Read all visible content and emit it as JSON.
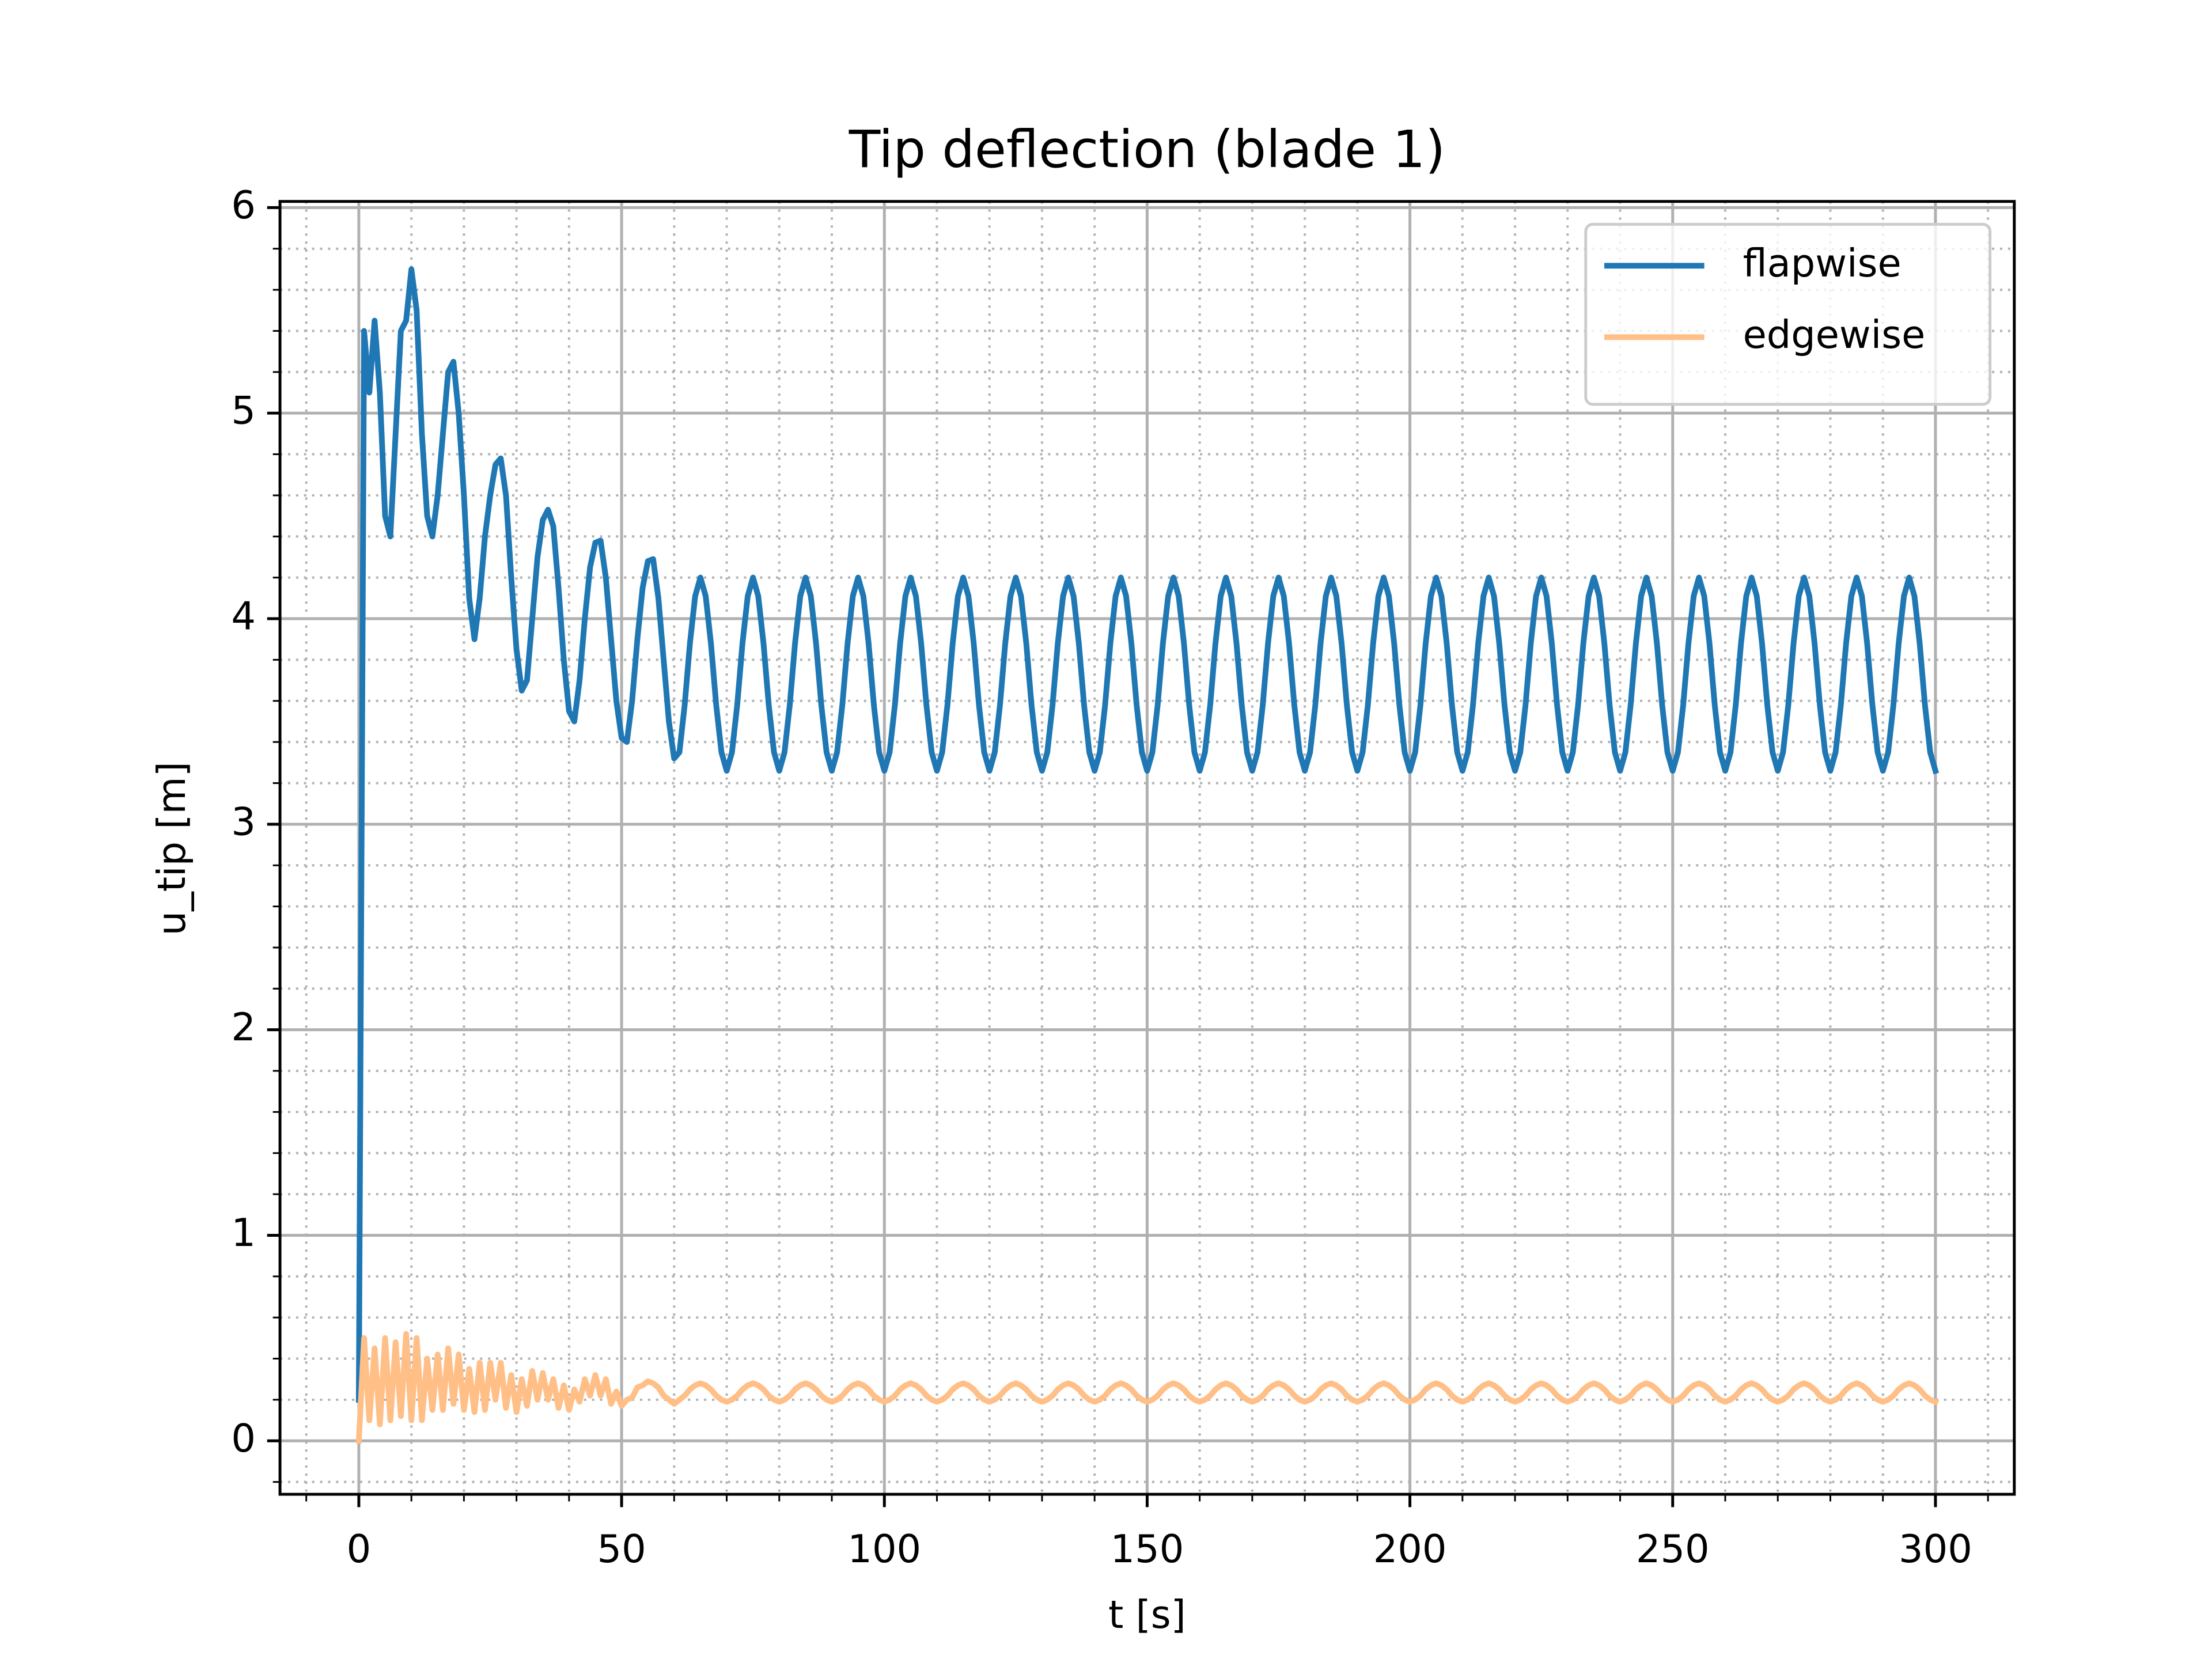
{
  "chart_data": {
    "type": "line",
    "title": "Tip deflection (blade 1)",
    "xlabel": "t [s]",
    "ylabel": "u_tip [m]",
    "x": [
      0,
      1,
      2,
      3,
      4,
      5,
      6,
      7,
      8,
      9,
      10,
      11,
      12,
      13,
      14,
      15,
      16,
      17,
      18,
      19,
      20,
      21,
      22,
      23,
      24,
      25,
      26,
      27,
      28,
      29,
      30,
      31,
      32,
      33,
      34,
      35,
      36,
      37,
      38,
      39,
      40,
      41,
      42,
      43,
      44,
      45,
      46,
      47,
      48,
      49,
      50,
      51,
      52,
      53,
      54,
      55,
      56,
      57,
      58,
      59,
      60,
      61,
      62,
      63,
      64,
      65,
      66,
      67,
      68,
      69,
      70,
      71,
      72,
      73,
      74,
      75,
      76,
      77,
      78,
      79,
      80,
      81,
      82,
      83,
      84,
      85,
      86,
      87,
      88,
      89,
      90,
      91,
      92,
      93,
      94,
      95,
      96,
      97,
      98,
      99,
      100,
      101,
      102,
      103,
      104,
      105,
      106,
      107,
      108,
      109,
      110,
      111,
      112,
      113,
      114,
      115,
      116,
      117,
      118,
      119,
      120,
      121,
      122,
      123,
      124,
      125,
      126,
      127,
      128,
      129,
      130,
      131,
      132,
      133,
      134,
      135,
      136,
      137,
      138,
      139,
      140,
      141,
      142,
      143,
      144,
      145,
      146,
      147,
      148,
      149,
      150,
      151,
      152,
      153,
      154,
      155,
      156,
      157,
      158,
      159,
      160,
      161,
      162,
      163,
      164,
      165,
      166,
      167,
      168,
      169,
      170,
      171,
      172,
      173,
      174,
      175,
      176,
      177,
      178,
      179,
      180,
      181,
      182,
      183,
      184,
      185,
      186,
      187,
      188,
      189,
      190,
      191,
      192,
      193,
      194,
      195,
      196,
      197,
      198,
      199,
      200,
      201,
      202,
      203,
      204,
      205,
      206,
      207,
      208,
      209,
      210,
      211,
      212,
      213,
      214,
      215,
      216,
      217,
      218,
      219,
      220,
      221,
      222,
      223,
      224,
      225,
      226,
      227,
      228,
      229,
      230,
      231,
      232,
      233,
      234,
      235,
      236,
      237,
      238,
      239,
      240,
      241,
      242,
      243,
      244,
      245,
      246,
      247,
      248,
      249,
      250,
      251,
      252,
      253,
      254,
      255,
      256,
      257,
      258,
      259,
      260,
      261,
      262,
      263,
      264,
      265,
      266,
      267,
      268,
      269,
      270,
      271,
      272,
      273,
      274,
      275,
      276,
      277,
      278,
      279,
      280,
      281,
      282,
      283,
      284,
      285,
      286,
      287,
      288,
      289,
      290,
      291,
      292,
      293,
      294,
      295,
      296,
      297,
      298,
      299,
      300
    ],
    "series": [
      {
        "name": "flapwise",
        "color": "#1f77b4",
        "values": [
          0.2,
          5.4,
          5.1,
          5.45,
          5.1,
          4.5,
          4.4,
          4.9,
          5.4,
          5.45,
          5.7,
          5.5,
          4.9,
          4.5,
          4.4,
          4.6,
          4.9,
          5.2,
          5.25,
          5.0,
          4.6,
          4.1,
          3.9,
          4.1,
          4.4,
          4.6,
          4.75,
          4.78,
          4.6,
          4.2,
          3.85,
          3.65,
          3.7,
          4.0,
          4.3,
          4.48,
          4.53,
          4.45,
          4.15,
          3.8,
          3.55,
          3.5,
          3.7,
          4.0,
          4.25,
          4.37,
          4.38,
          4.2,
          3.9,
          3.6,
          3.42,
          3.4,
          3.6,
          3.9,
          4.15,
          4.28,
          4.29,
          4.1,
          3.8,
          3.5,
          3.32,
          3.35,
          3.58,
          3.88,
          4.11,
          4.2,
          4.11,
          3.88,
          3.58,
          3.35,
          3.26,
          3.35,
          3.58,
          3.88,
          4.11,
          4.2,
          4.11,
          3.88,
          3.58,
          3.35,
          3.26,
          3.35,
          3.58,
          3.88,
          4.11,
          4.2,
          4.11,
          3.88,
          3.58,
          3.35,
          3.26,
          3.35,
          3.58,
          3.88,
          4.11,
          4.2,
          4.11,
          3.88,
          3.58,
          3.35,
          3.26,
          3.35,
          3.58,
          3.88,
          4.11,
          4.2,
          4.11,
          3.88,
          3.58,
          3.35,
          3.26,
          3.35,
          3.58,
          3.88,
          4.11,
          4.2,
          4.11,
          3.88,
          3.58,
          3.35,
          3.26,
          3.35,
          3.58,
          3.88,
          4.11,
          4.2,
          4.11,
          3.88,
          3.58,
          3.35,
          3.26,
          3.35,
          3.58,
          3.88,
          4.11,
          4.2,
          4.11,
          3.88,
          3.58,
          3.35,
          3.26,
          3.35,
          3.58,
          3.88,
          4.11,
          4.2,
          4.11,
          3.88,
          3.58,
          3.35,
          3.26,
          3.35,
          3.58,
          3.88,
          4.11,
          4.2,
          4.11,
          3.88,
          3.58,
          3.35,
          3.26,
          3.35,
          3.58,
          3.88,
          4.11,
          4.2,
          4.11,
          3.88,
          3.58,
          3.35,
          3.26,
          3.35,
          3.58,
          3.88,
          4.11,
          4.2,
          4.11,
          3.88,
          3.58,
          3.35,
          3.26,
          3.35,
          3.58,
          3.88,
          4.11,
          4.2,
          4.11,
          3.88,
          3.58,
          3.35,
          3.26,
          3.35,
          3.58,
          3.88,
          4.11,
          4.2,
          4.11,
          3.88,
          3.58,
          3.35,
          3.26,
          3.35,
          3.58,
          3.88,
          4.11,
          4.2,
          4.11,
          3.88,
          3.58,
          3.35,
          3.26,
          3.35,
          3.58,
          3.88,
          4.11,
          4.2,
          4.11,
          3.88,
          3.58,
          3.35,
          3.26,
          3.35,
          3.58,
          3.88,
          4.11,
          4.2,
          4.11,
          3.88,
          3.58,
          3.35,
          3.26,
          3.35,
          3.58,
          3.88,
          4.11,
          4.2,
          4.11,
          3.88,
          3.58,
          3.35,
          3.26,
          3.35,
          3.58,
          3.88,
          4.11,
          4.2,
          4.11,
          3.88,
          3.58,
          3.35,
          3.26,
          3.35,
          3.58,
          3.88,
          4.11,
          4.2,
          4.11,
          3.88,
          3.58,
          3.35,
          3.26,
          3.35,
          3.58,
          3.88,
          4.11,
          4.2,
          4.11,
          3.88,
          3.58,
          3.35,
          3.26,
          3.35,
          3.58,
          3.88,
          4.11,
          4.2,
          4.11,
          3.88,
          3.58,
          3.35,
          3.26,
          3.35,
          3.58,
          3.88,
          4.11,
          4.2,
          4.11,
          3.88,
          3.58,
          3.35,
          3.26,
          3.35,
          3.58,
          3.88,
          4.11,
          4.2,
          4.11,
          3.88,
          3.58,
          3.35,
          3.26
        ]
      },
      {
        "name": "edgewise",
        "color": "#ffbf87",
        "values": [
          0.0,
          0.5,
          0.1,
          0.45,
          0.08,
          0.5,
          0.1,
          0.48,
          0.12,
          0.52,
          0.1,
          0.5,
          0.1,
          0.4,
          0.15,
          0.42,
          0.15,
          0.45,
          0.18,
          0.42,
          0.15,
          0.35,
          0.14,
          0.38,
          0.15,
          0.38,
          0.2,
          0.38,
          0.16,
          0.32,
          0.14,
          0.3,
          0.17,
          0.34,
          0.2,
          0.33,
          0.2,
          0.3,
          0.16,
          0.27,
          0.15,
          0.25,
          0.19,
          0.3,
          0.22,
          0.32,
          0.22,
          0.3,
          0.18,
          0.24,
          0.17,
          0.2,
          0.21,
          0.26,
          0.27,
          0.29,
          0.28,
          0.26,
          0.22,
          0.2,
          0.18,
          0.2,
          0.22,
          0.25,
          0.27,
          0.28,
          0.27,
          0.25,
          0.22,
          0.2,
          0.19,
          0.2,
          0.22,
          0.25,
          0.27,
          0.28,
          0.27,
          0.25,
          0.22,
          0.2,
          0.19,
          0.2,
          0.22,
          0.25,
          0.27,
          0.28,
          0.27,
          0.25,
          0.22,
          0.2,
          0.19,
          0.2,
          0.22,
          0.25,
          0.27,
          0.28,
          0.27,
          0.25,
          0.22,
          0.2,
          0.19,
          0.2,
          0.22,
          0.25,
          0.27,
          0.28,
          0.27,
          0.25,
          0.22,
          0.2,
          0.19,
          0.2,
          0.22,
          0.25,
          0.27,
          0.28,
          0.27,
          0.25,
          0.22,
          0.2,
          0.19,
          0.2,
          0.22,
          0.25,
          0.27,
          0.28,
          0.27,
          0.25,
          0.22,
          0.2,
          0.19,
          0.2,
          0.22,
          0.25,
          0.27,
          0.28,
          0.27,
          0.25,
          0.22,
          0.2,
          0.19,
          0.2,
          0.22,
          0.25,
          0.27,
          0.28,
          0.27,
          0.25,
          0.22,
          0.2,
          0.19,
          0.2,
          0.22,
          0.25,
          0.27,
          0.28,
          0.27,
          0.25,
          0.22,
          0.2,
          0.19,
          0.2,
          0.22,
          0.25,
          0.27,
          0.28,
          0.27,
          0.25,
          0.22,
          0.2,
          0.19,
          0.2,
          0.22,
          0.25,
          0.27,
          0.28,
          0.27,
          0.25,
          0.22,
          0.2,
          0.19,
          0.2,
          0.22,
          0.25,
          0.27,
          0.28,
          0.27,
          0.25,
          0.22,
          0.2,
          0.19,
          0.2,
          0.22,
          0.25,
          0.27,
          0.28,
          0.27,
          0.25,
          0.22,
          0.2,
          0.19,
          0.2,
          0.22,
          0.25,
          0.27,
          0.28,
          0.27,
          0.25,
          0.22,
          0.2,
          0.19,
          0.2,
          0.22,
          0.25,
          0.27,
          0.28,
          0.27,
          0.25,
          0.22,
          0.2,
          0.19,
          0.2,
          0.22,
          0.25,
          0.27,
          0.28,
          0.27,
          0.25,
          0.22,
          0.2,
          0.19,
          0.2,
          0.22,
          0.25,
          0.27,
          0.28,
          0.27,
          0.25,
          0.22,
          0.2,
          0.19,
          0.2,
          0.22,
          0.25,
          0.27,
          0.28,
          0.27,
          0.25,
          0.22,
          0.2,
          0.19,
          0.2,
          0.22,
          0.25,
          0.27,
          0.28,
          0.27,
          0.25,
          0.22,
          0.2,
          0.19,
          0.2,
          0.22,
          0.25,
          0.27,
          0.28,
          0.27,
          0.25,
          0.22,
          0.2,
          0.19,
          0.2,
          0.22,
          0.25,
          0.27,
          0.28,
          0.27,
          0.25,
          0.22,
          0.2,
          0.19,
          0.2,
          0.22,
          0.25,
          0.27,
          0.28,
          0.27,
          0.25,
          0.22,
          0.2,
          0.19,
          0.2,
          0.22,
          0.25,
          0.27,
          0.28,
          0.27,
          0.25,
          0.22,
          0.2,
          0.19
        ]
      }
    ],
    "xlim": [
      -15,
      315
    ],
    "ylim": [
      -0.26,
      6.03
    ],
    "xticks": [
      0,
      50,
      100,
      150,
      200,
      250,
      300
    ],
    "yticks": [
      0,
      1,
      2,
      3,
      4,
      5,
      6
    ],
    "xminorticks": [
      -10,
      10,
      20,
      30,
      40,
      60,
      70,
      80,
      90,
      110,
      120,
      130,
      140,
      160,
      170,
      180,
      190,
      210,
      220,
      230,
      240,
      260,
      270,
      280,
      290,
      310
    ],
    "yminorticks": [
      -0.2,
      0.2,
      0.4,
      0.6,
      0.8,
      1.2,
      1.4,
      1.6,
      1.8,
      2.2,
      2.4,
      2.6,
      2.8,
      3.2,
      3.4,
      3.6,
      3.8,
      4.2,
      4.4,
      4.6,
      4.8,
      5.2,
      5.4,
      5.6,
      5.8
    ],
    "grid": true,
    "minor_grid": true,
    "legend": "upper right"
  }
}
